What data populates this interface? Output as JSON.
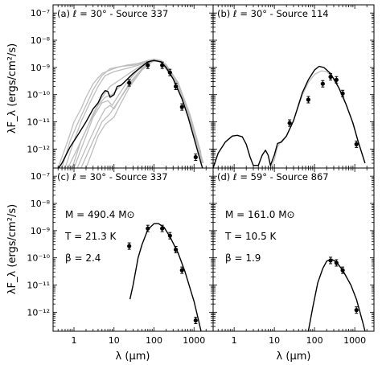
{
  "chart_data": {
    "type": "scatter",
    "x_scale": "log",
    "y_scale": "log",
    "xlim": [
      0.3,
      3000
    ],
    "ylim": [
      2e-13,
      2e-07
    ],
    "xlabel": "λ (μm)",
    "ylabel": "λF_λ (ergs/cm²/s)",
    "x_ticks": [
      {
        "value": 1,
        "label": "1"
      },
      {
        "value": 10,
        "label": "10"
      },
      {
        "value": 100,
        "label": "100"
      },
      {
        "value": 1000,
        "label": "1000"
      }
    ],
    "y_ticks": [
      {
        "value": 1e-12,
        "label": "10⁻¹²"
      },
      {
        "value": 1e-11,
        "label": "10⁻¹¹"
      },
      {
        "value": 1e-10,
        "label": "10⁻¹⁰"
      },
      {
        "value": 1e-09,
        "label": "10⁻⁹"
      },
      {
        "value": 1e-08,
        "label": "10⁻⁸"
      },
      {
        "value": 1e-07,
        "label": "10⁻⁷"
      }
    ],
    "panels": [
      {
        "id": "a",
        "title": "(a)   ℓ = 30° - Source 337",
        "points": [
          [
            24,
            2.7e-10
          ],
          [
            70,
            1.2e-09
          ],
          [
            160,
            1.2e-09
          ],
          [
            250,
            6.5e-10
          ],
          [
            350,
            2e-10
          ],
          [
            500,
            3.5e-11
          ],
          [
            1100,
            5e-13
          ]
        ],
        "best_fit": [
          [
            0.3,
            1e-13
          ],
          [
            0.5,
            3e-13
          ],
          [
            0.8,
            1.2e-12
          ],
          [
            1.2,
            3e-12
          ],
          [
            2,
            1e-11
          ],
          [
            3,
            3e-11
          ],
          [
            4,
            5e-11
          ],
          [
            5,
            1e-10
          ],
          [
            6,
            1.4e-10
          ],
          [
            7,
            1.3e-10
          ],
          [
            8,
            8e-11
          ],
          [
            10,
            1e-10
          ],
          [
            12,
            2e-10
          ],
          [
            15,
            2.2e-10
          ],
          [
            20,
            3.3e-10
          ],
          [
            30,
            6e-10
          ],
          [
            50,
            1.1e-09
          ],
          [
            70,
            1.6e-09
          ],
          [
            100,
            1.8e-09
          ],
          [
            150,
            1.6e-09
          ],
          [
            200,
            1e-09
          ],
          [
            300,
            3.8e-10
          ],
          [
            500,
            7e-11
          ],
          [
            700,
            1.6e-11
          ],
          [
            1000,
            2.5e-12
          ],
          [
            1500,
            3e-13
          ],
          [
            1800,
            1.2e-13
          ]
        ],
        "alt_fits": [
          [
            [
              0.4,
              2e-13
            ],
            [
              0.7,
              2e-12
            ],
            [
              1,
              1e-11
            ],
            [
              1.5,
              3e-11
            ],
            [
              2,
              8e-11
            ],
            [
              3,
              2.5e-10
            ],
            [
              5,
              6e-10
            ],
            [
              8,
              8e-10
            ],
            [
              12,
              1e-09
            ],
            [
              20,
              1.2e-09
            ],
            [
              40,
              1.4e-09
            ],
            [
              70,
              1.8e-09
            ],
            [
              100,
              2e-09
            ],
            [
              150,
              1.8e-09
            ],
            [
              200,
              1.2e-09
            ],
            [
              300,
              5e-10
            ],
            [
              500,
              9e-11
            ],
            [
              1000,
              4e-12
            ],
            [
              1600,
              3e-13
            ]
          ],
          [
            [
              0.5,
              2e-13
            ],
            [
              0.8,
              2e-12
            ],
            [
              1.2,
              8e-12
            ],
            [
              2,
              4e-11
            ],
            [
              3,
              1.5e-10
            ],
            [
              5,
              5e-10
            ],
            [
              8,
              9e-10
            ],
            [
              15,
              1.1e-09
            ],
            [
              30,
              1.2e-09
            ],
            [
              70,
              1.6e-09
            ],
            [
              100,
              1.9e-09
            ],
            [
              150,
              1.7e-09
            ],
            [
              250,
              8e-10
            ],
            [
              500,
              1e-10
            ],
            [
              1000,
              5e-12
            ],
            [
              1700,
              3e-13
            ]
          ],
          [
            [
              0.6,
              2e-13
            ],
            [
              1,
              2e-12
            ],
            [
              1.5,
              1e-11
            ],
            [
              2.5,
              5e-11
            ],
            [
              4,
              2e-10
            ],
            [
              6,
              5e-10
            ],
            [
              10,
              7e-10
            ],
            [
              20,
              9e-10
            ],
            [
              40,
              1.2e-09
            ],
            [
              80,
              1.7e-09
            ],
            [
              120,
              1.8e-09
            ],
            [
              200,
              1.2e-09
            ],
            [
              400,
              2.5e-10
            ],
            [
              800,
              1.5e-11
            ],
            [
              1500,
              5e-13
            ]
          ],
          [
            [
              0.7,
              2e-13
            ],
            [
              1.2,
              1e-12
            ],
            [
              2,
              5e-12
            ],
            [
              3,
              2e-11
            ],
            [
              5,
              8e-11
            ],
            [
              8,
              2e-10
            ],
            [
              12,
              3e-10
            ],
            [
              20,
              5e-10
            ],
            [
              40,
              1e-09
            ],
            [
              80,
              1.7e-09
            ],
            [
              120,
              1.9e-09
            ],
            [
              200,
              1.3e-09
            ],
            [
              400,
              2.8e-10
            ],
            [
              800,
              1.8e-11
            ],
            [
              1500,
              7e-13
            ]
          ],
          [
            [
              0.9,
              2e-13
            ],
            [
              1.5,
              2e-12
            ],
            [
              2.5,
              1e-11
            ],
            [
              4,
              4e-11
            ],
            [
              6,
              8e-11
            ],
            [
              9,
              1e-10
            ],
            [
              14,
              2e-10
            ],
            [
              25,
              4.5e-10
            ],
            [
              50,
              1.1e-09
            ],
            [
              90,
              1.8e-09
            ],
            [
              130,
              1.8e-09
            ],
            [
              250,
              8e-10
            ],
            [
              500,
              1e-10
            ],
            [
              1000,
              5e-12
            ],
            [
              1700,
              3e-13
            ]
          ],
          [
            [
              1.0,
              2e-13
            ],
            [
              2,
              3e-12
            ],
            [
              3,
              1.5e-11
            ],
            [
              5,
              5e-11
            ],
            [
              7,
              6e-11
            ],
            [
              9,
              4e-11
            ],
            [
              12,
              8e-11
            ],
            [
              20,
              2.5e-10
            ],
            [
              40,
              8e-10
            ],
            [
              80,
              1.6e-09
            ],
            [
              120,
              1.8e-09
            ],
            [
              220,
              1e-09
            ],
            [
              500,
              9e-11
            ],
            [
              1000,
              4e-12
            ],
            [
              1700,
              3e-13
            ]
          ],
          [
            [
              1.2,
              2e-13
            ],
            [
              2.2,
              1.5e-12
            ],
            [
              4,
              1e-11
            ],
            [
              6,
              3e-11
            ],
            [
              8,
              4e-11
            ],
            [
              10,
              3e-11
            ],
            [
              14,
              7e-11
            ],
            [
              25,
              2.8e-10
            ],
            [
              50,
              9e-10
            ],
            [
              90,
              1.7e-09
            ],
            [
              140,
              1.7e-09
            ],
            [
              300,
              4e-10
            ],
            [
              700,
              2e-11
            ],
            [
              1400,
              8e-13
            ]
          ],
          [
            [
              1.5,
              2e-13
            ],
            [
              3,
              2e-12
            ],
            [
              5,
              1e-11
            ],
            [
              8,
              2e-11
            ],
            [
              12,
              5e-11
            ],
            [
              20,
              1.5e-10
            ],
            [
              40,
              6e-10
            ],
            [
              80,
              1.5e-09
            ],
            [
              120,
              1.9e-09
            ],
            [
              250,
              8e-10
            ],
            [
              600,
              4e-11
            ],
            [
              1300,
              1e-12
            ]
          ],
          [
            [
              2,
              2e-13
            ],
            [
              4,
              3e-12
            ],
            [
              6,
              8e-12
            ],
            [
              10,
              1.5e-11
            ],
            [
              15,
              5e-11
            ],
            [
              25,
              2e-10
            ],
            [
              50,
              8e-10
            ],
            [
              90,
              1.6e-09
            ],
            [
              150,
              1.8e-09
            ],
            [
              300,
              5e-10
            ],
            [
              700,
              2e-11
            ],
            [
              1500,
              5e-13
            ]
          ]
        ]
      },
      {
        "id": "b",
        "title": "(b)   ℓ = 30° - Source 114",
        "points": [
          [
            24,
            9e-12
          ],
          [
            70,
            6.5e-11
          ],
          [
            160,
            2.5e-10
          ],
          [
            250,
            4.5e-10
          ],
          [
            350,
            3.5e-10
          ],
          [
            500,
            1.1e-10
          ],
          [
            1100,
            1.5e-12
          ]
        ],
        "best_fit": [
          [
            0.3,
            2e-13
          ],
          [
            0.4,
            7e-13
          ],
          [
            0.6,
            1.8e-12
          ],
          [
            0.9,
            3e-12
          ],
          [
            1.2,
            3.2e-12
          ],
          [
            1.6,
            2.8e-12
          ],
          [
            2,
            1.5e-12
          ],
          [
            2.5,
            5e-13
          ],
          [
            3,
            2.5e-13
          ],
          [
            4,
            2.5e-13
          ],
          [
            5,
            6e-13
          ],
          [
            6,
            9e-13
          ],
          [
            7,
            6e-13
          ],
          [
            8,
            2.5e-13
          ],
          [
            10,
            6e-13
          ],
          [
            12,
            1.6e-12
          ],
          [
            15,
            1.8e-12
          ],
          [
            20,
            3e-12
          ],
          [
            30,
            1.1e-11
          ],
          [
            50,
            1.2e-10
          ],
          [
            70,
            3.5e-10
          ],
          [
            100,
            8e-10
          ],
          [
            130,
            1.1e-09
          ],
          [
            170,
            1e-09
          ],
          [
            250,
            6e-10
          ],
          [
            400,
            1.8e-10
          ],
          [
            600,
            4.5e-11
          ],
          [
            900,
            9e-12
          ],
          [
            1200,
            2e-12
          ],
          [
            1800,
            3e-13
          ]
        ],
        "alt_fits": [
          [
            [
              8,
              2e-13
            ],
            [
              10,
              4e-13
            ],
            [
              12,
              1.2e-12
            ],
            [
              15,
              2e-12
            ],
            [
              20,
              3e-12
            ],
            [
              30,
              1.1e-11
            ],
            [
              50,
              1e-10
            ],
            [
              70,
              2.8e-10
            ],
            [
              100,
              5.5e-10
            ],
            [
              150,
              7.5e-10
            ],
            [
              200,
              7e-10
            ],
            [
              300,
              4e-10
            ],
            [
              500,
              1e-10
            ],
            [
              800,
              1.5e-11
            ],
            [
              1200,
              2e-12
            ],
            [
              1800,
              3e-13
            ]
          ]
        ]
      },
      {
        "id": "c",
        "title": "(c)   ℓ = 30° - Source 337",
        "params": {
          "mass": "M = 490.4 M⊙",
          "temp": "T = 21.3 K",
          "beta": "β = 2.4"
        },
        "points": [
          [
            24,
            2.7e-10
          ],
          [
            70,
            1.2e-09
          ],
          [
            160,
            1.2e-09
          ],
          [
            250,
            6.5e-10
          ],
          [
            350,
            2e-10
          ],
          [
            500,
            3.5e-11
          ],
          [
            1100,
            5e-13
          ]
        ],
        "best_fit": [
          [
            25,
            3e-12
          ],
          [
            30,
            1e-11
          ],
          [
            40,
            1e-10
          ],
          [
            50,
            3e-10
          ],
          [
            70,
            1.1e-09
          ],
          [
            100,
            1.8e-09
          ],
          [
            130,
            1.8e-09
          ],
          [
            180,
            1.3e-09
          ],
          [
            250,
            6e-10
          ],
          [
            400,
            1.5e-10
          ],
          [
            600,
            3e-11
          ],
          [
            1000,
            2.5e-12
          ],
          [
            1300,
            5e-13
          ],
          [
            1500,
            2e-13
          ]
        ]
      },
      {
        "id": "d",
        "title": "(d)   ℓ = 59° - Source 867",
        "params": {
          "mass": "M = 161.0 M⊙",
          "temp": "T = 10.5 K",
          "beta": "β = 1.9"
        },
        "points": [
          [
            250,
            8e-11
          ],
          [
            350,
            6.5e-11
          ],
          [
            500,
            3.5e-11
          ],
          [
            1100,
            1.2e-12
          ]
        ],
        "best_fit": [
          [
            70,
            2e-13
          ],
          [
            90,
            1.5e-12
          ],
          [
            120,
            1.2e-11
          ],
          [
            160,
            4e-11
          ],
          [
            200,
            7.5e-11
          ],
          [
            260,
            9e-11
          ],
          [
            350,
            7e-11
          ],
          [
            500,
            3.5e-11
          ],
          [
            800,
            1e-11
          ],
          [
            1100,
            3e-12
          ],
          [
            1600,
            4e-13
          ],
          [
            1800,
            2e-13
          ]
        ]
      }
    ],
    "colors": {
      "data": "#000000",
      "best_fit": "#000000",
      "alt_fits": "#bdbdbd"
    }
  }
}
